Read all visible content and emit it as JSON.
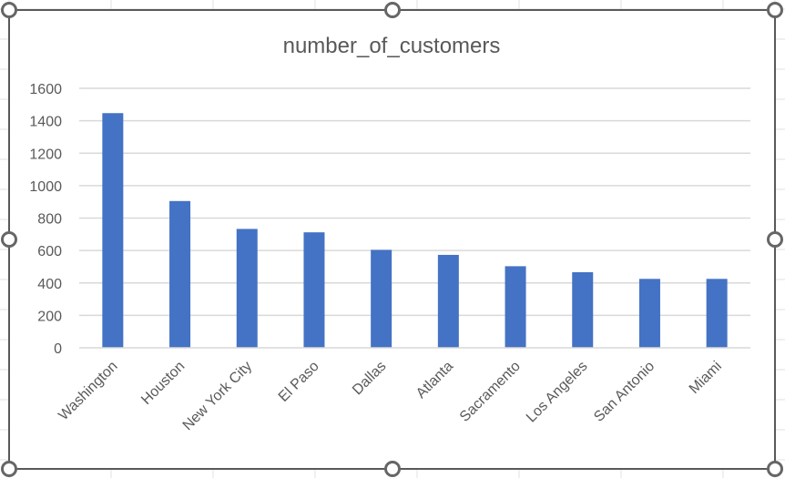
{
  "chart_data": {
    "type": "bar",
    "title": "number_of_customers",
    "xlabel": "",
    "ylabel": "",
    "categories": [
      "Washington",
      "Houston",
      "New York City",
      "El Paso",
      "Dallas",
      "Atlanta",
      "Sacramento",
      "Los Angeles",
      "San Antonio",
      "Miami"
    ],
    "values": [
      1447,
      905,
      733,
      712,
      604,
      573,
      503,
      466,
      425,
      425
    ],
    "ylim": [
      0,
      1600
    ],
    "yticks": [
      "0",
      "200",
      "400",
      "600",
      "800",
      "1000",
      "1200",
      "1400",
      "1600"
    ],
    "grid": true,
    "legend": "none",
    "bar_color": "#4472C4",
    "gridline_color": "#D9D9D9",
    "text_color": "#595959"
  }
}
